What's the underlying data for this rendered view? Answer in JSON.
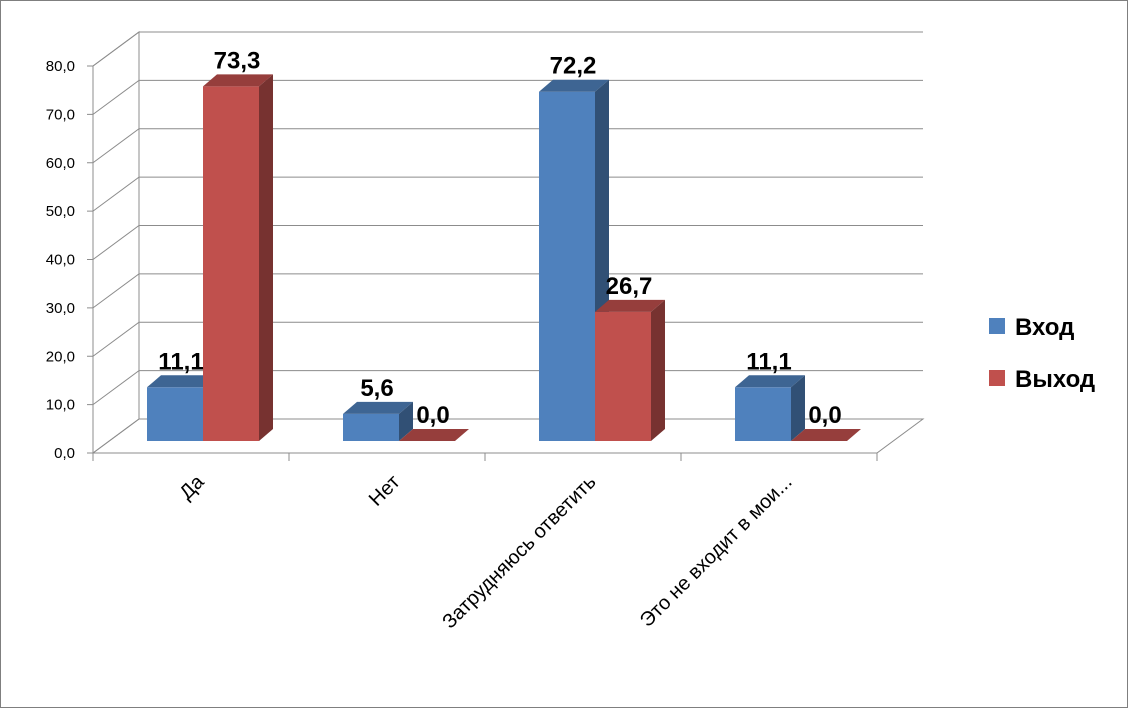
{
  "chart_data": {
    "type": "bar",
    "categories": [
      "Да",
      "Нет",
      "Затрудняюсь ответить",
      "Это не входит в мои..."
    ],
    "series": [
      {
        "name": "Вход",
        "values": [
          11.1,
          5.6,
          72.2,
          11.1
        ],
        "labels": [
          "11,1",
          "5,6",
          "72,2",
          "11,1"
        ],
        "color": "#4f81bd"
      },
      {
        "name": "Выход",
        "values": [
          73.3,
          0.0,
          26.7,
          0.0
        ],
        "labels": [
          "73,3",
          "0,0",
          "26,7",
          "0,0"
        ],
        "color": "#c0504d"
      }
    ],
    "yticks": [
      "0,0",
      "10,0",
      "20,0",
      "30,0",
      "40,0",
      "50,0",
      "60,0",
      "70,0",
      "80,0"
    ],
    "ylim": [
      0,
      80
    ],
    "grid": true,
    "legend": "right",
    "style": "3d-clustered-column"
  }
}
